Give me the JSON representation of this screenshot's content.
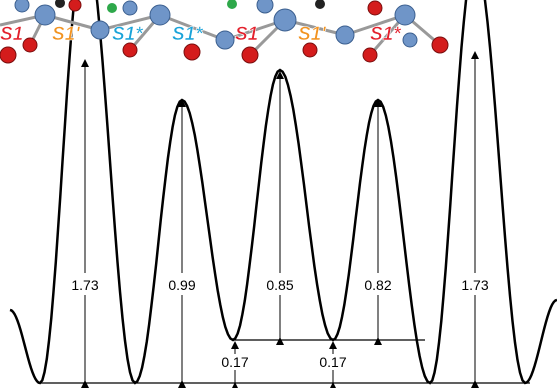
{
  "sites": [
    {
      "text": "S1",
      "color": "#e3202c"
    },
    {
      "text": "S1'",
      "color": "#f29320"
    },
    {
      "text": "S1*",
      "color": "#1aa3d9"
    },
    {
      "text": "S1*",
      "color": "#1aa3d9"
    },
    {
      "text": "S1",
      "color": "#e3202c"
    },
    {
      "text": "S1'",
      "color": "#f29320"
    },
    {
      "text": "S1*",
      "color": "#e3202c"
    }
  ],
  "barriers": [
    1.73,
    0.99,
    0.85,
    0.82,
    1.73
  ],
  "offsets": [
    0.17,
    0.17
  ]
}
